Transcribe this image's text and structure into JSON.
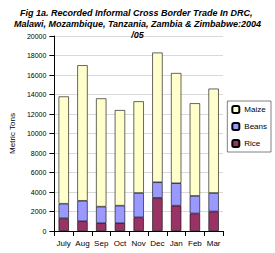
{
  "chart_data": {
    "type": "bar",
    "title": "Fig 1a. Recorded Informal Cross Border Trade In DRC, Malawi, Mozambique, Tanzania, Zambia & Zimbabwe:2004/05",
    "y_label": "Metric Tons",
    "categories": [
      "July",
      "Aug",
      "Sep",
      "Oct",
      "Nov",
      "Dec",
      "Jan",
      "Feb",
      "Mar"
    ],
    "series": [
      {
        "name": "Rice",
        "color": "#993366",
        "values": [
          1300,
          1000,
          800,
          800,
          1400,
          3400,
          2600,
          1800,
          2000
        ]
      },
      {
        "name": "Beans",
        "color": "#9999ff",
        "values": [
          1500,
          2100,
          1700,
          1800,
          2500,
          1600,
          2300,
          1800,
          1900
        ]
      },
      {
        "name": "Maize",
        "color": "#ffffcc",
        "values": [
          11000,
          13900,
          11100,
          9800,
          9400,
          13300,
          11300,
          9500,
          10700
        ]
      }
    ],
    "stacked": true,
    "ylim": [
      0,
      20000
    ],
    "yticks": [
      0,
      2000,
      4000,
      6000,
      8000,
      10000,
      12000,
      14000,
      16000,
      18000,
      20000
    ],
    "grid": true,
    "legend": "right"
  }
}
